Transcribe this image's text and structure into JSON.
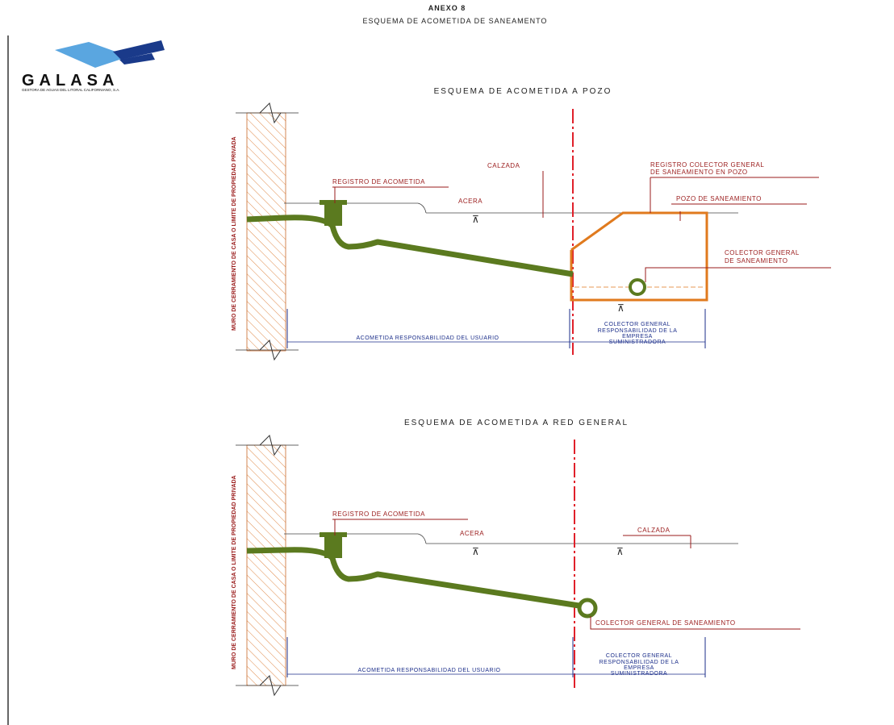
{
  "header": {
    "annex": "ANEXO 8",
    "subtitle": "ESQUEMA DE ACOMETIDA DE SANEAMENTO"
  },
  "logo": {
    "name": "GALASA",
    "tagline": "GESTORA DE AGUAS DEL LITORAL CALIFORNIANO, S.A."
  },
  "diagram_top": {
    "title": "ESQUEMA  DE  ACOMETIDA  A  POZO",
    "registro": "REGISTRO  DE  ACOMETIDA",
    "calzada": "CALZADA",
    "acera": "ACERA",
    "registro_colector_1": "REGISTRO  COLECTOR  GENERAL",
    "registro_colector_2": "DE  SANEAMIENTO  EN  POZO",
    "pozo": "POZO  DE  SANEAMIENTO",
    "colector_1": "COLECTOR  GENERAL",
    "colector_2": "DE  SANEAMIENTO",
    "wall_label": "MURO DE CERRAMIENTO DE CASA O LIMITE DE PROPIEDAD PRIVADA",
    "resp_user": "ACOMETIDA  RESPONSABILIDAD  DEL  USUARIO",
    "resp_company_1": "COLECTOR  GENERAL",
    "resp_company_2": "RESPONSABILIDAD  DE  LA",
    "resp_company_3": "EMPRESA",
    "resp_company_4": "SUMINISTRADORA"
  },
  "diagram_bottom": {
    "title": "ESQUEMA  DE  ACOMETIDA  A  RED  GENERAL",
    "registro": "REGISTRO  DE  ACOMETIDA",
    "acera": "ACERA",
    "calzada": "CALZADA",
    "colector": "COLECTOR  GENERAL  DE  SANEAMIENTO",
    "wall_label": "MURO DE CERRAMIENTO DE CASA O LIMITE DE PROPIEDAD PRIVADA",
    "resp_user": "ACOMETIDA  RESPONSABILIDAD  DEL  USUARIO",
    "resp_company_1": "COLECTOR  GENERAL",
    "resp_company_2": "RESPONSABILIDAD  DE  LA",
    "resp_company_3": "EMPRESA",
    "resp_company_4": "SUMINISTRADORA"
  },
  "colors": {
    "pipe": "#5b7a1f",
    "wall_hatch": "#e08a4a",
    "pit": "#e07a1e",
    "axis": "#e0202a",
    "label_red": "#9a1b1b",
    "dimension_blue": "#1b2e8a"
  }
}
